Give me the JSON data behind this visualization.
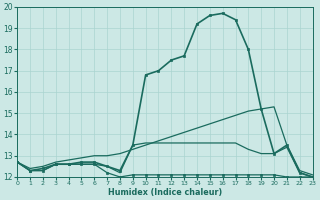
{
  "xlabel": "Humidex (Indice chaleur)",
  "xlim": [
    0,
    23
  ],
  "ylim": [
    12,
    20
  ],
  "yticks": [
    12,
    13,
    14,
    15,
    16,
    17,
    18,
    19,
    20
  ],
  "xticks": [
    0,
    1,
    2,
    3,
    4,
    5,
    6,
    7,
    8,
    9,
    10,
    11,
    12,
    13,
    14,
    15,
    16,
    17,
    18,
    19,
    20,
    21,
    22,
    23
  ],
  "bg_color": "#cce8e5",
  "grid_color": "#aad4d0",
  "line_color": "#1a6b5e",
  "lines": [
    {
      "x": [
        0,
        1,
        2,
        3,
        4,
        5,
        6,
        7,
        8,
        9,
        10,
        11,
        12,
        13,
        14,
        15,
        16,
        17,
        18,
        19,
        20,
        21,
        22,
        23
      ],
      "y": [
        12.7,
        12.3,
        12.3,
        12.6,
        12.6,
        12.6,
        12.6,
        12.2,
        12.0,
        12.1,
        12.1,
        12.1,
        12.1,
        12.1,
        12.1,
        12.1,
        12.1,
        12.1,
        12.1,
        12.1,
        12.1,
        12.0,
        12.0,
        12.0
      ],
      "lw": 0.9,
      "marker": "s",
      "ms": 2.0,
      "has_marker": true
    },
    {
      "x": [
        0,
        1,
        2,
        3,
        4,
        5,
        6,
        7,
        8,
        9,
        10,
        11,
        12,
        13,
        14,
        15,
        16,
        17,
        18,
        19,
        20,
        21,
        22,
        23
      ],
      "y": [
        12.7,
        12.3,
        12.3,
        12.6,
        12.6,
        12.6,
        12.6,
        12.5,
        12.2,
        13.5,
        13.6,
        13.6,
        13.6,
        13.6,
        13.6,
        13.6,
        13.6,
        13.6,
        13.3,
        13.1,
        13.1,
        13.4,
        12.2,
        12.0
      ],
      "lw": 0.9,
      "marker": null,
      "ms": 0,
      "has_marker": false
    },
    {
      "x": [
        0,
        1,
        2,
        3,
        4,
        5,
        6,
        7,
        8,
        9,
        10,
        11,
        12,
        13,
        14,
        15,
        16,
        17,
        18,
        19,
        20,
        21,
        22,
        23
      ],
      "y": [
        12.7,
        12.4,
        12.5,
        12.7,
        12.8,
        12.9,
        13.0,
        13.0,
        13.1,
        13.3,
        13.5,
        13.7,
        13.9,
        14.1,
        14.3,
        14.5,
        14.7,
        14.9,
        15.1,
        15.2,
        15.3,
        13.5,
        12.3,
        12.1
      ],
      "lw": 0.9,
      "marker": null,
      "ms": 0,
      "has_marker": false
    },
    {
      "x": [
        0,
        1,
        2,
        3,
        4,
        5,
        6,
        7,
        8,
        9,
        10,
        11,
        12,
        13,
        14,
        15,
        16,
        17,
        18,
        19,
        20,
        21,
        22,
        23
      ],
      "y": [
        12.7,
        12.3,
        12.4,
        12.6,
        12.6,
        12.7,
        12.7,
        12.5,
        12.3,
        13.5,
        16.8,
        17.0,
        17.5,
        17.7,
        19.2,
        19.6,
        19.7,
        19.4,
        18.0,
        15.2,
        13.1,
        13.5,
        12.2,
        12.0
      ],
      "lw": 1.2,
      "marker": "s",
      "ms": 2.0,
      "has_marker": true
    }
  ]
}
